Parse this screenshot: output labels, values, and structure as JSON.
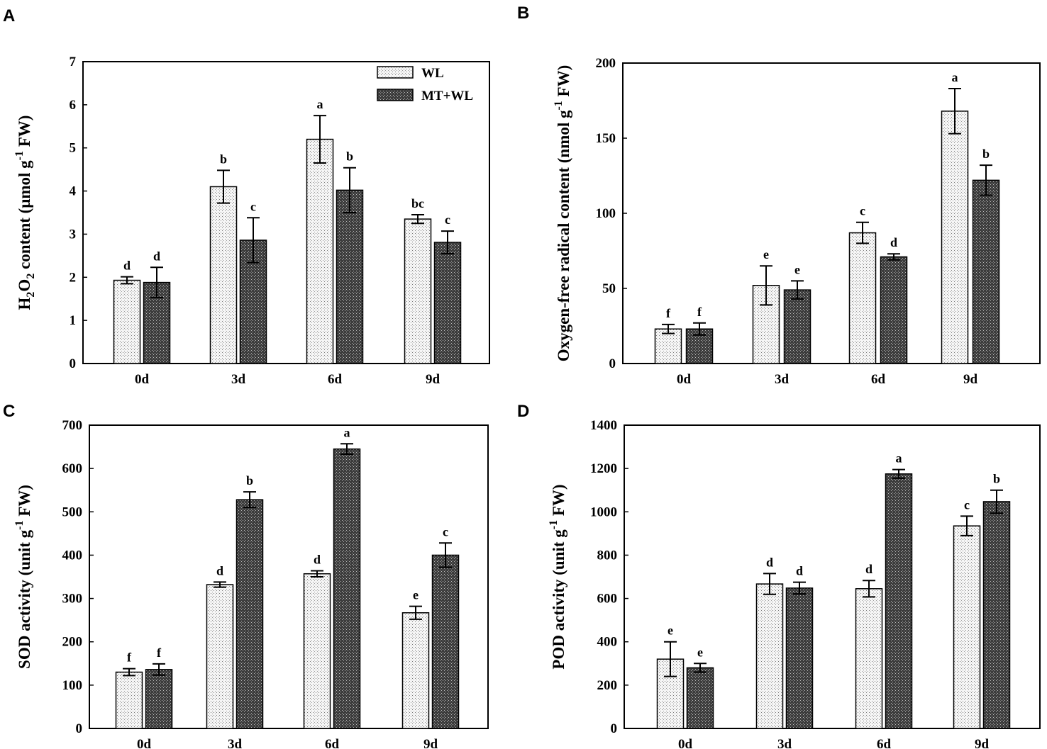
{
  "series_names": [
    "WL",
    "MT+WL"
  ],
  "colors": {
    "wl_fill": "#f4f4f4",
    "mt_fill": "#5a5a5a",
    "axis": "#000000"
  },
  "chart_data": [
    {
      "panel": "A",
      "type": "bar",
      "categories": [
        "0d",
        "3d",
        "6d",
        "9d"
      ],
      "ylabel": {
        "pre": "H",
        "sub1": "2",
        "mid": "O",
        "sub2": "2",
        "post": " content (μmol g",
        "sup": "-1",
        "end": " FW)"
      },
      "ylim": [
        0,
        7
      ],
      "yticks": [
        0,
        1,
        2,
        3,
        4,
        5,
        6,
        7
      ],
      "legend": "top-right",
      "series": [
        {
          "name": "WL",
          "values": [
            1.93,
            4.1,
            5.2,
            3.35
          ],
          "errors": [
            0.08,
            0.38,
            0.55,
            0.1
          ],
          "labels": [
            "d",
            "b",
            "a",
            "bc"
          ]
        },
        {
          "name": "MT+WL",
          "values": [
            1.88,
            2.86,
            4.02,
            2.81
          ],
          "errors": [
            0.35,
            0.52,
            0.52,
            0.26
          ],
          "labels": [
            "d",
            "c",
            "b",
            "c"
          ]
        }
      ]
    },
    {
      "panel": "B",
      "type": "bar",
      "categories": [
        "0d",
        "3d",
        "6d",
        "9d"
      ],
      "ylabel": {
        "pre": "Oxygen-free radical content (nmol g",
        "sup": "-1",
        "end": " FW)"
      },
      "ylim": [
        0,
        200
      ],
      "yticks": [
        0,
        50,
        100,
        150,
        200
      ],
      "series": [
        {
          "name": "WL",
          "values": [
            23,
            52,
            87,
            168
          ],
          "errors": [
            3,
            13,
            7,
            15
          ],
          "labels": [
            "f",
            "e",
            "c",
            "a"
          ]
        },
        {
          "name": "MT+WL",
          "values": [
            23,
            49,
            71,
            122
          ],
          "errors": [
            4,
            6,
            2,
            10
          ],
          "labels": [
            "f",
            "e",
            "d",
            "b"
          ]
        }
      ]
    },
    {
      "panel": "C",
      "type": "bar",
      "categories": [
        "0d",
        "3d",
        "6d",
        "9d"
      ],
      "ylabel": {
        "pre": "SOD activity (unit g",
        "sup": "-1",
        "end": " FW)"
      },
      "ylim": [
        0,
        700
      ],
      "yticks": [
        0,
        100,
        200,
        300,
        400,
        500,
        600,
        700
      ],
      "series": [
        {
          "name": "WL",
          "values": [
            130,
            332,
            357,
            267
          ],
          "errors": [
            8,
            6,
            7,
            15
          ],
          "labels": [
            "f",
            "d",
            "d",
            "e"
          ]
        },
        {
          "name": "MT+WL",
          "values": [
            136,
            528,
            645,
            400
          ],
          "errors": [
            13,
            18,
            12,
            28
          ],
          "labels": [
            "f",
            "b",
            "a",
            "c"
          ]
        }
      ]
    },
    {
      "panel": "D",
      "type": "bar",
      "categories": [
        "0d",
        "3d",
        "6d",
        "9d"
      ],
      "ylabel": {
        "pre": "POD activity (unit g",
        "sup": "-1",
        "end": " FW)"
      },
      "ylim": [
        0,
        1400
      ],
      "yticks": [
        0,
        200,
        400,
        600,
        800,
        1000,
        1200,
        1400
      ],
      "series": [
        {
          "name": "WL",
          "values": [
            320,
            667,
            645,
            935
          ],
          "errors": [
            80,
            48,
            38,
            45
          ],
          "labels": [
            "e",
            "d",
            "d",
            "c"
          ]
        },
        {
          "name": "MT+WL",
          "values": [
            280,
            648,
            1175,
            1047
          ],
          "errors": [
            20,
            27,
            20,
            53
          ],
          "labels": [
            "e",
            "d",
            "a",
            "b"
          ]
        }
      ]
    }
  ]
}
